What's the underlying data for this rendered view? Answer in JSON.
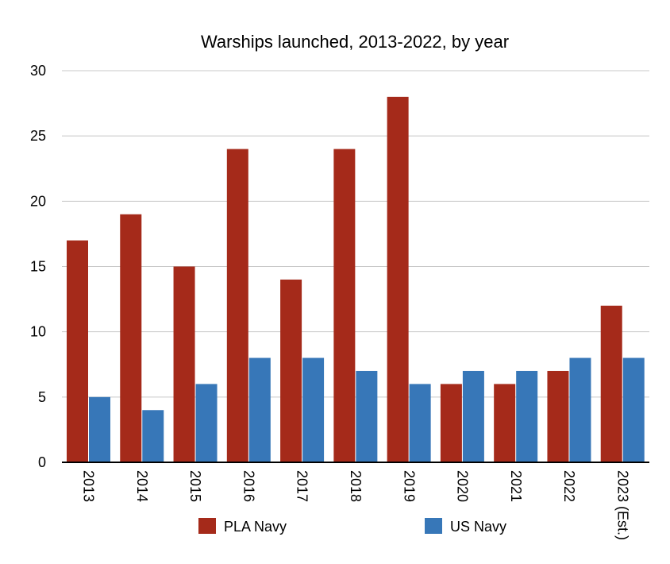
{
  "chart_data": {
    "type": "bar",
    "title": "Warships launched, 2013-2022, by year",
    "xlabel": "",
    "ylabel": "",
    "ylim": [
      0,
      30
    ],
    "yticks": [
      0,
      5,
      10,
      15,
      20,
      25,
      30
    ],
    "grid": true,
    "legend_position": "bottom",
    "categories": [
      "2013",
      "2014",
      "2015",
      "2016",
      "2017",
      "2018",
      "2019",
      "2020",
      "2021",
      "2022",
      "2023 (Est.)"
    ],
    "series": [
      {
        "name": "PLA Navy",
        "color": "#a52a1a",
        "values": [
          17,
          19,
          15,
          24,
          14,
          24,
          28,
          6,
          6,
          7,
          12
        ]
      },
      {
        "name": "US Navy",
        "color": "#3777b8",
        "values": [
          5,
          4,
          6,
          8,
          8,
          7,
          6,
          7,
          7,
          8,
          8
        ]
      }
    ]
  }
}
